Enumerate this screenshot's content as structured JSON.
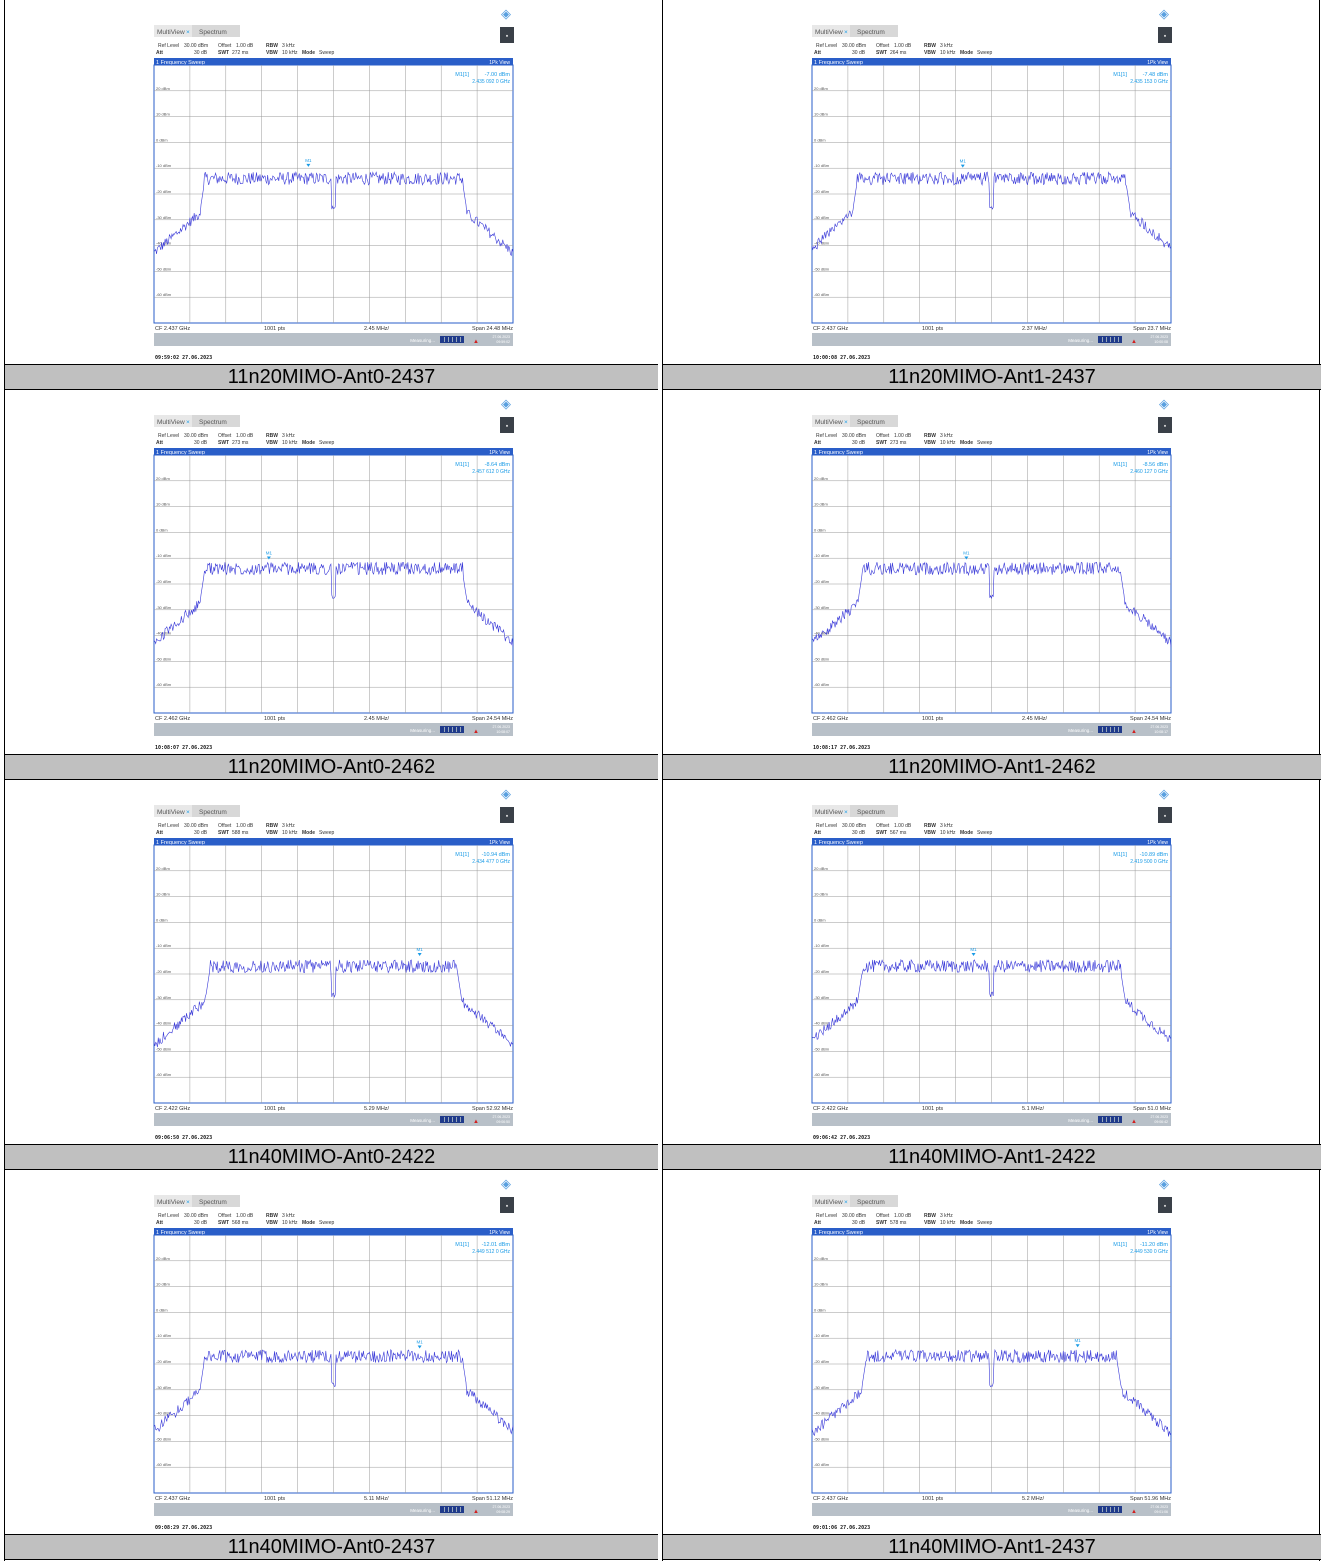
{
  "colors": {
    "trace": "#3a3ad8",
    "header_blue": "#2a5ec8",
    "marker": "#1a9be6",
    "caption_bg": "#c0c0c0",
    "status_bar": "#b8c0c8",
    "logo": "#5aa0e0"
  },
  "common": {
    "tab_multiview": "MultiView",
    "tab_spectrum": "Spectrum",
    "ref_level_label": "Ref Level",
    "ref_level_value": "30.00 dBm",
    "offset_label": "Offset",
    "offset_value": "1.00 dB",
    "rbw_label": "RBW",
    "rbw_value": "3 kHz",
    "att_label": "Att",
    "att_value": "30 dB",
    "swt_label": "SWT",
    "vbw_label": "VBW",
    "vbw_value": "10 kHz",
    "mode_label": "Mode",
    "mode_value": "Sweep",
    "trace_title": "1 Frequency Sweep",
    "trace_mode": "1Pk View",
    "marker_label": "M1[1]",
    "marker_tag": "M1",
    "points": "1001 pts",
    "status": "Measuring...",
    "y_labels": [
      "20 dBm",
      "10 dBm",
      "0 dBm",
      "-10 dBm",
      "-20 dBm",
      "-30 dBm",
      "-40 dBm",
      "-50 dBm",
      "-60 dBm"
    ],
    "logo_glyph": "◈",
    "menu_glyph": "▪",
    "warn_glyph": "▲"
  },
  "panels": [
    {
      "caption": "11n20MIMO-Ant0-2437",
      "swt": "272 ms",
      "marker_level": "-7.00 dBm",
      "marker_freq": "2.435 092 0 GHz",
      "cf": "CF 2.437 GHz",
      "div": "2.45 MHz/",
      "span": "Span 24.48 MHz",
      "timestamp": "09:59:02  27.06.2023",
      "status_date": "27.06.2023",
      "status_time": "09:59:02",
      "width_frac": 0.72,
      "marker_x_frac": 0.43,
      "marker_y_dbm": -9.5,
      "plateau_dbm": -14,
      "noise_dbm": -45
    },
    {
      "caption": "11n20MIMO-Ant1-2437",
      "swt": "264 ms",
      "marker_level": "-7.48 dBm",
      "marker_freq": "2.435 153 0 GHz",
      "cf": "CF 2.437 GHz",
      "div": "2.37 MHz/",
      "span": "Span 23.7 MHz",
      "timestamp": "10:00:08  27.06.2023",
      "status_date": "27.06.2023",
      "status_time": "10:00:08",
      "width_frac": 0.75,
      "marker_x_frac": 0.42,
      "marker_y_dbm": -9.8,
      "plateau_dbm": -14,
      "noise_dbm": -45
    },
    {
      "caption": "11n20MIMO-Ant0-2462",
      "swt": "273 ms",
      "marker_level": "-8.64 dBm",
      "marker_freq": "2.457 612 0 GHz",
      "cf": "CF 2.462 GHz",
      "div": "2.45 MHz/",
      "span": "Span 24.54 MHz",
      "timestamp": "10:08:07  27.06.2023",
      "status_date": "27.06.2023",
      "status_time": "10:08:07",
      "width_frac": 0.72,
      "marker_x_frac": 0.32,
      "marker_y_dbm": -10.5,
      "plateau_dbm": -14,
      "noise_dbm": -45
    },
    {
      "caption": "11n20MIMO-Ant1-2462",
      "swt": "273 ms",
      "marker_level": "-8.56 dBm",
      "marker_freq": "2.460 127 0 GHz",
      "cf": "CF 2.462 GHz",
      "div": "2.45 MHz/",
      "span": "Span 24.54 MHz",
      "timestamp": "10:08:17  27.06.2023",
      "status_date": "27.06.2023",
      "status_time": "10:08:17",
      "width_frac": 0.72,
      "marker_x_frac": 0.43,
      "marker_y_dbm": -10.5,
      "plateau_dbm": -14,
      "noise_dbm": -45
    },
    {
      "caption": "11n40MIMO-Ant0-2422",
      "swt": "588 ms",
      "marker_level": "-10.94 dBm",
      "marker_freq": "2.434 477 0 GHz",
      "cf": "CF 2.422 GHz",
      "div": "5.29 MHz/",
      "span": "Span 52.92 MHz",
      "timestamp": "09:06:50  27.06.2023",
      "status_date": "27.06.2023",
      "status_time": "09:06:50",
      "width_frac": 0.69,
      "marker_x_frac": 0.74,
      "marker_y_dbm": -13,
      "plateau_dbm": -17,
      "noise_dbm": -49
    },
    {
      "caption": "11n40MIMO-Ant1-2422",
      "swt": "567 ms",
      "marker_level": "-10.89 dBm",
      "marker_freq": "2.419 500 0 GHz",
      "cf": "CF 2.422 GHz",
      "div": "5.1 MHz/",
      "span": "Span 51.0 MHz",
      "timestamp": "09:06:42  27.06.2023",
      "status_date": "27.06.2023",
      "status_time": "09:06:42",
      "width_frac": 0.72,
      "marker_x_frac": 0.45,
      "marker_y_dbm": -13,
      "plateau_dbm": -17,
      "noise_dbm": -49
    },
    {
      "caption": "11n40MIMO-Ant0-2437",
      "swt": "568 ms",
      "marker_level": "-12.01 dBm",
      "marker_freq": "2.449 512 0 GHz",
      "cf": "CF 2.437 GHz",
      "div": "5.11 MHz/",
      "span": "Span 51.12 MHz",
      "timestamp": "09:08:29  27.06.2023",
      "status_date": "27.06.2023",
      "status_time": "09:08:29",
      "width_frac": 0.72,
      "marker_x_frac": 0.74,
      "marker_y_dbm": -14,
      "plateau_dbm": -17,
      "noise_dbm": -48
    },
    {
      "caption": "11n40MIMO-Ant1-2437",
      "swt": "578 ms",
      "marker_level": "-11.20 dBm",
      "marker_freq": "2.449 530 0 GHz",
      "cf": "CF 2.437 GHz",
      "div": "5.2 MHz/",
      "span": "Span 51.96 MHz",
      "timestamp": "09:01:06  27.06.2023",
      "status_date": "27.06.2023",
      "status_time": "09:01:06",
      "width_frac": 0.7,
      "marker_x_frac": 0.74,
      "marker_y_dbm": -13.5,
      "plateau_dbm": -17,
      "noise_dbm": -48
    }
  ]
}
